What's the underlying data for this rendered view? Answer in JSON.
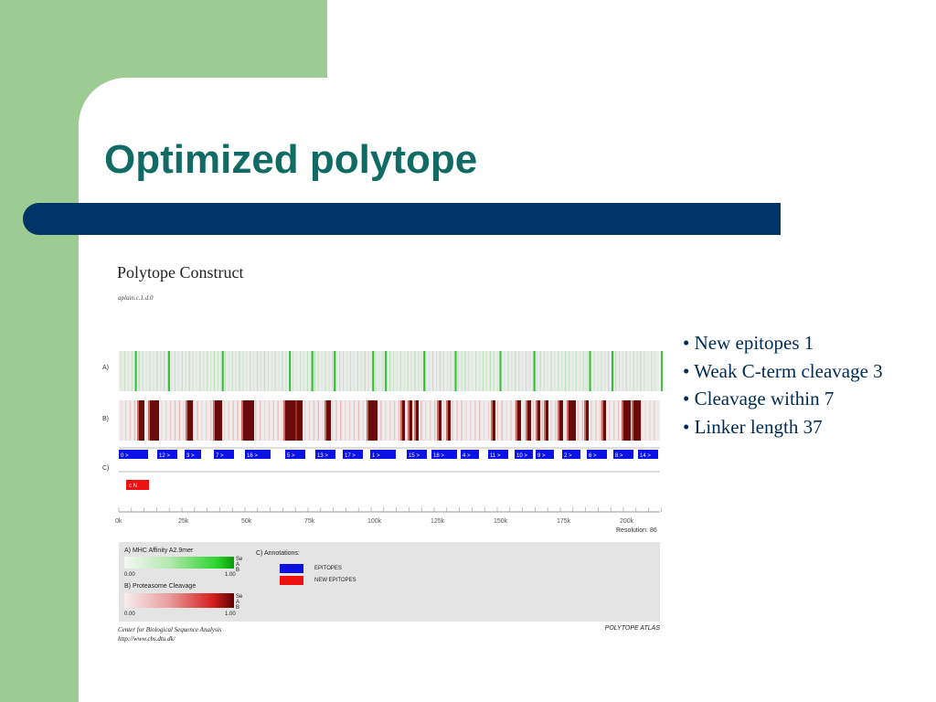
{
  "slide": {
    "title": "Optimized polytope",
    "bullets": [
      "• New epitopes 1",
      "• Weak C-term cleavage 3",
      "• Cleavage within 7",
      "• Linker length 37"
    ],
    "colors": {
      "title": "#0f6b63",
      "accent_bar": "#003366",
      "side_panel": "#9ccc94"
    }
  },
  "figure": {
    "title": "Polytope Construct",
    "subtitle": "aplain.c.1.d.0",
    "row_labels": [
      "A)",
      "B)",
      "C)"
    ],
    "epitopes": [
      "0 >",
      "12 >",
      "3 >",
      "7 >",
      "16 >",
      "5 >",
      "13 >",
      "17 >",
      "1 >",
      "15 >",
      "18 >",
      "4 >",
      "11 >",
      "10 >",
      "9 >",
      "2 >",
      "6 >",
      "8 >",
      "14 >"
    ],
    "new_epitope_label": "c N",
    "axis_ticks": [
      "0k",
      "25k",
      "50k",
      "75k",
      "100k",
      "125k",
      "150k",
      "175k",
      "200k"
    ],
    "resolution": "Resolution: 86",
    "legend": {
      "mhc_title": "A) MHC Affinity A2.9mer",
      "mhc_min": "0.00",
      "mhc_max": "1.00",
      "mhc_side": "Se A B",
      "cleavage_title": "B) Proteasome Cleavage",
      "cleavage_min": "0.00",
      "cleavage_max": "1.00",
      "cleavage_side": "Se A B",
      "annotations_title": "C) Annotations:",
      "epitopes_label": "EPITOPES",
      "new_epitopes_label": "NEW EPITOPES"
    },
    "footer_left_1": "Center for Biological Sequence Analysis",
    "footer_left_2": "http://www.cbs.dtu.dk/",
    "footer_right": "POLYTOPE ATLAS"
  }
}
